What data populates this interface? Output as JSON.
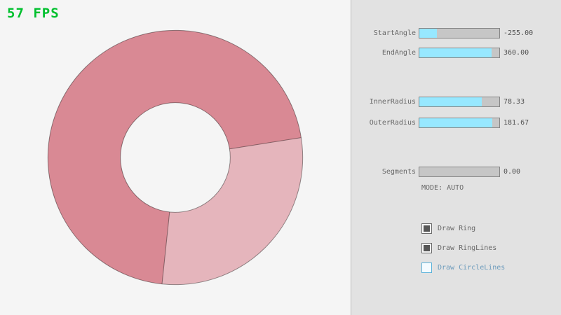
{
  "app": {
    "fps": "57 FPS"
  },
  "colors": {
    "fps_green": "#00c02e",
    "ring_dark": "#d98994",
    "ring_light": "#e5b5bc",
    "ring_line": "rgba(0,0,0,0.4)",
    "slider_fill_cyan": "#97e8ff",
    "accent_blue": "#5bb2d9",
    "panel_bg": "#e2e2e2",
    "scene_bg": "#f5f5f5"
  },
  "panel": {
    "sliders": [
      {
        "label": "StartAngle",
        "value": "-255.00",
        "fill_percent": 21.7
      },
      {
        "label": "EndAngle",
        "value": "360.00",
        "fill_percent": 90.0
      },
      {
        "label": "InnerRadius",
        "value": "78.33",
        "fill_percent": 78.3
      },
      {
        "label": "OuterRadius",
        "value": "181.67",
        "fill_percent": 90.8
      },
      {
        "label": "Segments",
        "value": "0.00",
        "fill_percent": 0
      }
    ],
    "mode_text": "MODE: AUTO",
    "checkboxes": [
      {
        "label": "Draw Ring",
        "checked": true
      },
      {
        "label": "Draw RingLines",
        "checked": true
      },
      {
        "label": "Draw CircleLines",
        "checked": false
      }
    ]
  }
}
